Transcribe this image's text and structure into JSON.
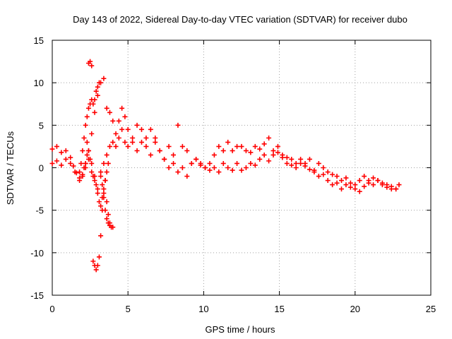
{
  "chart_data": {
    "type": "scatter",
    "title": "Day 143 of 2022, Sidereal Day-to-day VTEC variation (SDTVAR) for receiver dubo",
    "xlabel": "GPS time / hours",
    "ylabel": "SDTVAR / TECUs",
    "xlim": [
      0,
      25
    ],
    "ylim": [
      -15,
      15
    ],
    "xticks": [
      0,
      5,
      10,
      15,
      20,
      25
    ],
    "yticks": [
      -15,
      -10,
      -5,
      0,
      5,
      10,
      15
    ],
    "grid": true,
    "marker": "+",
    "series": [
      {
        "name": "SDTVAR",
        "color": "#ff0000",
        "x": [
          0.0,
          0.3,
          0.6,
          0.9,
          1.2,
          1.4,
          1.6,
          1.8,
          2.0,
          2.2,
          2.4,
          2.6,
          2.8,
          3.0,
          3.2,
          3.4,
          3.6,
          3.8,
          4.0,
          4.2,
          4.4,
          4.6,
          4.8,
          5.0,
          5.3,
          5.6,
          5.9,
          6.2,
          6.5,
          6.8,
          7.1,
          7.4,
          7.7,
          8.0,
          8.3,
          8.6,
          8.9,
          9.2,
          9.5,
          9.8,
          10.1,
          10.4,
          10.7,
          11.0,
          11.3,
          11.6,
          11.9,
          12.2,
          12.5,
          12.8,
          13.1,
          13.4,
          13.7,
          14.0,
          14.3,
          14.6,
          14.9,
          15.2,
          15.5,
          15.8,
          16.1,
          16.4,
          16.7,
          17.0,
          17.3,
          17.6,
          17.9,
          18.2,
          18.5,
          18.8,
          19.1,
          19.4,
          19.7,
          20.0,
          20.3,
          20.6,
          20.9,
          21.2,
          21.5,
          21.8,
          22.1,
          22.4,
          22.7,
          22.9,
          0.0,
          0.3,
          0.6,
          0.9,
          1.2,
          1.5,
          1.8,
          2.0,
          2.2,
          2.4,
          2.6,
          2.8,
          3.0,
          3.2,
          3.4,
          3.6,
          3.8,
          4.0,
          4.2,
          4.4,
          4.6,
          4.8,
          5.0,
          5.3,
          5.6,
          5.9,
          6.2,
          6.5,
          6.8,
          7.1,
          7.4,
          7.7,
          8.0,
          8.3,
          8.6,
          8.9,
          9.2,
          9.5,
          9.8,
          10.1,
          10.4,
          10.7,
          11.0,
          11.3,
          11.6,
          11.9,
          12.2,
          12.5,
          12.8,
          13.1,
          13.4,
          13.7,
          14.0,
          14.3,
          14.6,
          14.9,
          15.2,
          15.5,
          15.8,
          16.1,
          16.4,
          16.7,
          17.0,
          17.3,
          17.6,
          17.9,
          18.2,
          18.5,
          18.8,
          19.1,
          19.4,
          19.7,
          20.0,
          20.3,
          20.6,
          20.9,
          21.2,
          21.5,
          21.8,
          22.1,
          22.4,
          22.7,
          1.8,
          1.9,
          2.0,
          2.1,
          2.2,
          2.3,
          2.4,
          2.5,
          2.6,
          2.7,
          2.8,
          2.9,
          3.0,
          3.1,
          3.2,
          3.3,
          3.4,
          3.5,
          3.6,
          3.7,
          3.8,
          3.9,
          4.0,
          2.1,
          2.2,
          2.3,
          2.4,
          2.5,
          2.6,
          2.7,
          2.8,
          2.9,
          3.0,
          3.1,
          3.2,
          3.3,
          3.4,
          3.5,
          3.6,
          3.7,
          3.8,
          2.3,
          2.4,
          2.5,
          2.6,
          2.7,
          2.8,
          2.9,
          3.0,
          3.1,
          3.2,
          3.3,
          3.4,
          3.5,
          3.6,
          3.7
        ],
        "y": [
          2.2,
          2.5,
          1.8,
          2.0,
          1.2,
          0.2,
          -0.6,
          -1.2,
          -0.8,
          0.5,
          2.0,
          4.0,
          6.5,
          8.5,
          10.0,
          10.5,
          7.0,
          6.5,
          5.5,
          4.0,
          5.5,
          7.0,
          6.0,
          4.5,
          3.0,
          5.0,
          4.5,
          3.5,
          4.5,
          3.0,
          2.0,
          1.0,
          2.5,
          1.5,
          5.0,
          2.5,
          2.0,
          0.5,
          1.0,
          0.5,
          0.0,
          0.5,
          1.5,
          2.5,
          2.0,
          3.0,
          2.0,
          2.5,
          2.5,
          2.0,
          1.8,
          2.5,
          2.2,
          2.8,
          3.5,
          2.0,
          2.5,
          1.5,
          1.2,
          1.0,
          0.5,
          1.0,
          0.5,
          1.0,
          -0.3,
          0.5,
          0.0,
          -0.5,
          -0.8,
          -1.0,
          -1.5,
          -1.2,
          -1.8,
          -2.0,
          -1.5,
          -1.0,
          -1.5,
          -1.2,
          -1.5,
          -1.8,
          -2.0,
          -2.2,
          -2.5,
          -2.0,
          0.5,
          0.8,
          0.3,
          1.0,
          0.5,
          -0.5,
          -1.5,
          -1.0,
          0.0,
          1.0,
          0.5,
          -1.0,
          -2.5,
          -0.5,
          0.5,
          1.5,
          2.5,
          3.0,
          2.5,
          3.5,
          4.5,
          3.0,
          2.5,
          3.5,
          2.0,
          3.0,
          2.5,
          1.5,
          3.5,
          2.0,
          1.0,
          0.0,
          0.5,
          -0.5,
          0.0,
          -1.0,
          0.5,
          1.0,
          0.3,
          0.0,
          -0.3,
          0.0,
          -0.5,
          0.5,
          0.0,
          -0.3,
          0.5,
          -0.3,
          0.0,
          0.5,
          0.3,
          1.0,
          1.5,
          0.8,
          1.5,
          1.8,
          1.2,
          0.5,
          0.3,
          0.0,
          0.5,
          0.2,
          -0.2,
          -0.5,
          -1.0,
          -0.8,
          -1.5,
          -2.0,
          -1.8,
          -2.5,
          -2.0,
          -2.3,
          -2.5,
          -2.8,
          -2.2,
          -1.8,
          -2.0,
          -1.5,
          -2.0,
          -2.3,
          -2.5,
          -2.5,
          -0.5,
          0.5,
          2.0,
          3.5,
          5.0,
          6.0,
          7.0,
          7.5,
          8.0,
          -11.0,
          -11.5,
          -12.0,
          -11.5,
          -10.5,
          -8.0,
          -5.0,
          -3.0,
          -1.5,
          -4.0,
          -5.5,
          -6.5,
          -7.0,
          -7.0,
          0.0,
          0.5,
          1.5,
          12.3,
          12.5,
          12.0,
          7.5,
          8.0,
          9.0,
          9.5,
          10.0,
          -1.0,
          -2.0,
          -3.5,
          -5.0,
          -6.0,
          -6.5,
          -6.8,
          3.0,
          2.0,
          1.0,
          -0.5,
          -1.0,
          -1.5,
          -2.0,
          -3.0,
          -4.0,
          -4.5,
          -3.5,
          -2.5,
          -1.5,
          -0.5,
          0.5
        ]
      }
    ]
  }
}
